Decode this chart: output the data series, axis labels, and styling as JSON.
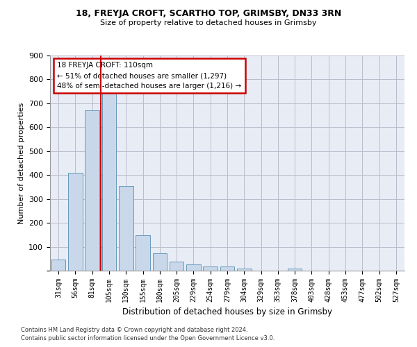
{
  "title1": "18, FREYJA CROFT, SCARTHO TOP, GRIMSBY, DN33 3RN",
  "title2": "Size of property relative to detached houses in Grimsby",
  "xlabel": "Distribution of detached houses by size in Grimsby",
  "ylabel": "Number of detached properties",
  "footer1": "Contains HM Land Registry data © Crown copyright and database right 2024.",
  "footer2": "Contains public sector information licensed under the Open Government Licence v3.0.",
  "bar_color": "#c8d8ea",
  "bar_edge_color": "#6699bb",
  "grid_color": "#bbbbcc",
  "bg_color": "#e8edf5",
  "annotation_box_color": "#cc0000",
  "annotation_line_color": "#cc0000",
  "categories": [
    "31sqm",
    "56sqm",
    "81sqm",
    "105sqm",
    "130sqm",
    "155sqm",
    "180sqm",
    "205sqm",
    "229sqm",
    "254sqm",
    "279sqm",
    "304sqm",
    "329sqm",
    "353sqm",
    "378sqm",
    "403sqm",
    "428sqm",
    "453sqm",
    "477sqm",
    "502sqm",
    "527sqm"
  ],
  "values": [
    47,
    410,
    670,
    750,
    355,
    148,
    72,
    37,
    27,
    18,
    18,
    10,
    0,
    0,
    8,
    0,
    0,
    0,
    0,
    0,
    0
  ],
  "annotation_text1": "18 FREYJA CROFT: 110sqm",
  "annotation_text2": "← 51% of detached houses are smaller (1,297)",
  "annotation_text3": "48% of semi-detached houses are larger (1,216) →",
  "vline_x": 2.5,
  "ylim": [
    0,
    900
  ],
  "yticks": [
    0,
    100,
    200,
    300,
    400,
    500,
    600,
    700,
    800,
    900
  ]
}
